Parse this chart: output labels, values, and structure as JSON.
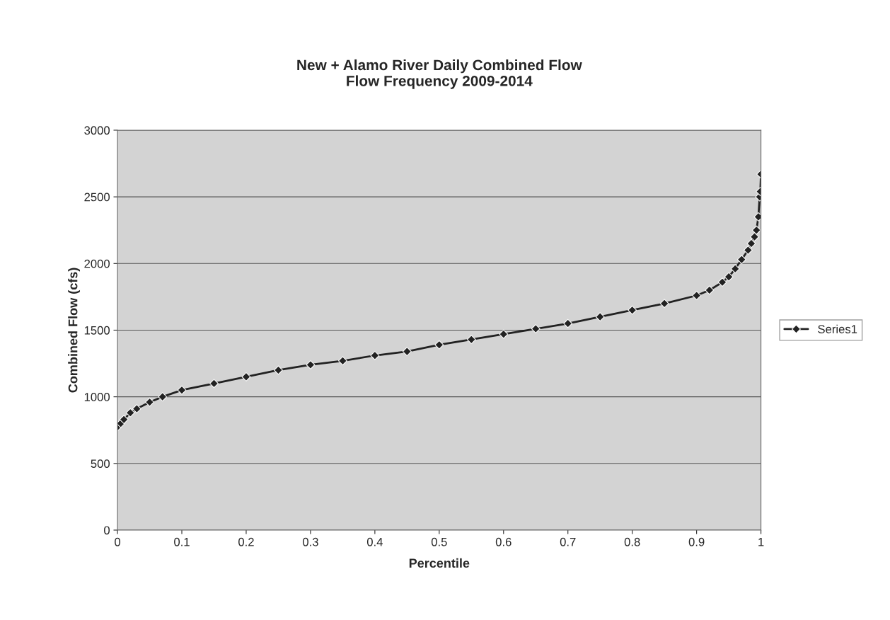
{
  "chart_data": {
    "type": "line",
    "title": "New + Alamo River Daily Combined Flow\nFlow Frequency 2009-2014",
    "xlabel": "Percentile",
    "ylabel": "Combined Flow (cfs)",
    "series": [
      {
        "name": "Series1",
        "color": "#222222",
        "x": [
          0,
          0.005,
          0.01,
          0.02,
          0.03,
          0.05,
          0.07,
          0.1,
          0.15,
          0.2,
          0.25,
          0.3,
          0.35,
          0.4,
          0.45,
          0.5,
          0.55,
          0.6,
          0.65,
          0.7,
          0.75,
          0.8,
          0.85,
          0.9,
          0.92,
          0.94,
          0.95,
          0.96,
          0.97,
          0.98,
          0.985,
          0.99,
          0.993,
          0.996,
          0.998,
          0.999,
          1.0
        ],
        "values": [
          775,
          800,
          830,
          880,
          910,
          960,
          1000,
          1050,
          1100,
          1150,
          1200,
          1240,
          1270,
          1310,
          1340,
          1390,
          1430,
          1470,
          1510,
          1550,
          1600,
          1650,
          1700,
          1760,
          1800,
          1860,
          1900,
          1960,
          2030,
          2100,
          2150,
          2200,
          2250,
          2350,
          2500,
          2540,
          2670
        ]
      }
    ],
    "xlim": [
      0,
      1
    ],
    "xticks": [
      0,
      0.1,
      0.2,
      0.3,
      0.4,
      0.5,
      0.6,
      0.7,
      0.8,
      0.9,
      1
    ],
    "ylim": [
      0,
      3000
    ],
    "yticks": [
      0,
      500,
      1000,
      1500,
      2000,
      2500,
      3000
    ],
    "grid": "y",
    "legend": "right",
    "marker": "diamond",
    "line_style": "solid"
  }
}
